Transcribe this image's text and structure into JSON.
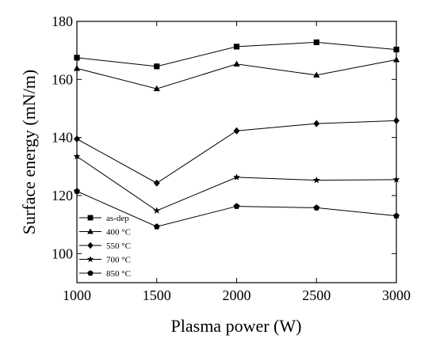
{
  "chart_data": {
    "type": "line",
    "title": "",
    "xlabel": "Plasma power (W)",
    "ylabel": "Surface energy (mN/m)",
    "x": [
      1000,
      1500,
      2000,
      2500,
      3000
    ],
    "xticks": [
      "1000",
      "1500",
      "2000",
      "2500",
      "3000"
    ],
    "yticks": [
      "100",
      "120",
      "140",
      "160",
      "180"
    ],
    "xlim": [
      1000,
      3000
    ],
    "ylim": [
      90,
      180
    ],
    "grid": false,
    "legend_position": "bottom-left",
    "series": [
      {
        "name": "as-dep",
        "marker": "square",
        "values": [
          167.5,
          164.5,
          171.3,
          172.8,
          170.3
        ]
      },
      {
        "name": "400 °C",
        "marker": "triangle",
        "values": [
          163.8,
          156.8,
          165.3,
          161.5,
          166.8
        ]
      },
      {
        "name": "550 °C",
        "marker": "diamond",
        "values": [
          139.5,
          124.3,
          142.3,
          144.8,
          145.8
        ]
      },
      {
        "name": "700 °C",
        "marker": "star",
        "values": [
          133.5,
          114.8,
          126.3,
          125.3,
          125.5
        ]
      },
      {
        "name": "850 °C",
        "marker": "pentagon",
        "values": [
          121.5,
          109.3,
          116.3,
          115.8,
          113.0
        ]
      }
    ]
  }
}
